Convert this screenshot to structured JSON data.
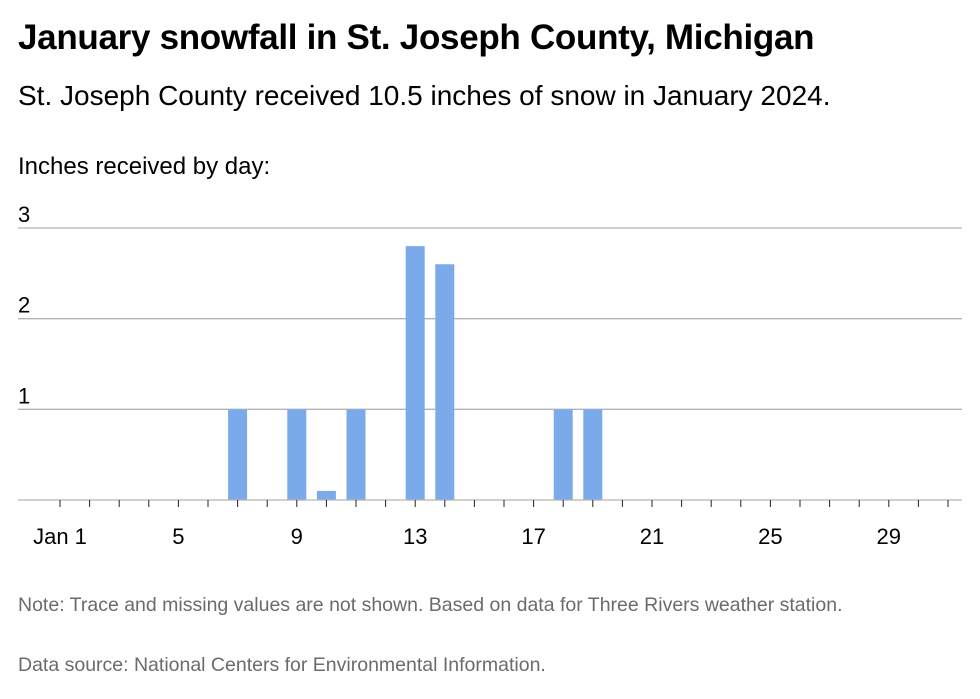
{
  "header": {
    "title": "January snowfall in St. Joseph County, Michigan",
    "subtitle": "St. Joseph County received 10.5 inches of snow in January 2024.",
    "axis_caption": "Inches received by day:"
  },
  "footer": {
    "note": "Note: Trace and missing values are not shown. Based on data for Three Rivers weather station.",
    "source": "Data source: National Centers for Environmental Information."
  },
  "colors": {
    "bar": "#7aaaea",
    "grid": "#b4b4b4",
    "axis": "#222222",
    "muted": "#6b6b6b"
  },
  "chart_data": {
    "type": "bar",
    "title": "January snowfall in St. Joseph County, Michigan",
    "ylabel": "Inches received by day:",
    "x_range": [
      1,
      31
    ],
    "x_ticks": [
      1,
      5,
      9,
      13,
      17,
      21,
      25,
      29
    ],
    "x_tick_labels": [
      "Jan 1",
      "5",
      "9",
      "13",
      "17",
      "21",
      "25",
      "29"
    ],
    "ylim": [
      0,
      3
    ],
    "y_ticks": [
      1,
      2,
      3
    ],
    "y_tick_labels": [
      "1",
      "2",
      "3"
    ],
    "grid": true,
    "x": [
      7,
      9,
      10,
      11,
      13,
      14,
      18,
      19
    ],
    "values": [
      1.0,
      1.0,
      0.1,
      1.0,
      2.8,
      2.6,
      1.0,
      1.0
    ]
  }
}
